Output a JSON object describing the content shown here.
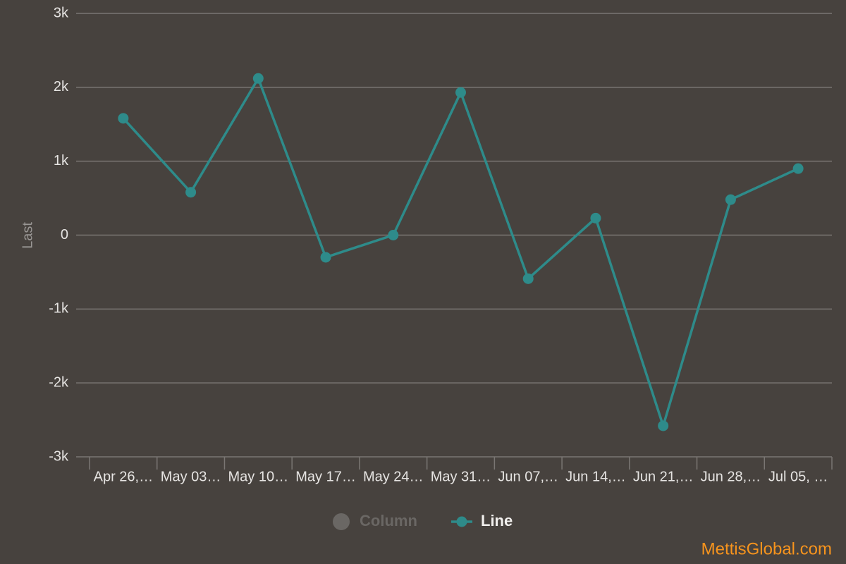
{
  "chart_data": {
    "type": "line",
    "y_label": "Last",
    "categories": [
      "Apr 26,…",
      "May 03…",
      "May 10…",
      "May 17…",
      "May 24…",
      "May 31…",
      "Jun 07,…",
      "Jun 14,…",
      "Jun 21,…",
      "Jun 28,…",
      "Jul 05, …"
    ],
    "series": [
      {
        "name": "Column",
        "color": "#6a6764",
        "visible": false,
        "values": [
          null,
          null,
          null,
          null,
          null,
          null,
          null,
          null,
          null,
          null,
          null
        ]
      },
      {
        "name": "Line",
        "color": "#2e8b8a",
        "visible": true,
        "values": [
          1580,
          580,
          2120,
          -300,
          0,
          1930,
          -590,
          230,
          -2580,
          480,
          900
        ]
      }
    ],
    "ylim": [
      -3000,
      3000
    ],
    "yticks": [
      {
        "value": -3000,
        "label": "-3k"
      },
      {
        "value": -2000,
        "label": "-2k"
      },
      {
        "value": -1000,
        "label": "-1k"
      },
      0,
      {
        "value": 1000,
        "label": "1k"
      },
      {
        "value": 2000,
        "label": "2k"
      },
      {
        "value": 3000,
        "label": "3k"
      }
    ],
    "grid": true,
    "legend": "bottom",
    "watermark": "MettisGlobal.com"
  }
}
